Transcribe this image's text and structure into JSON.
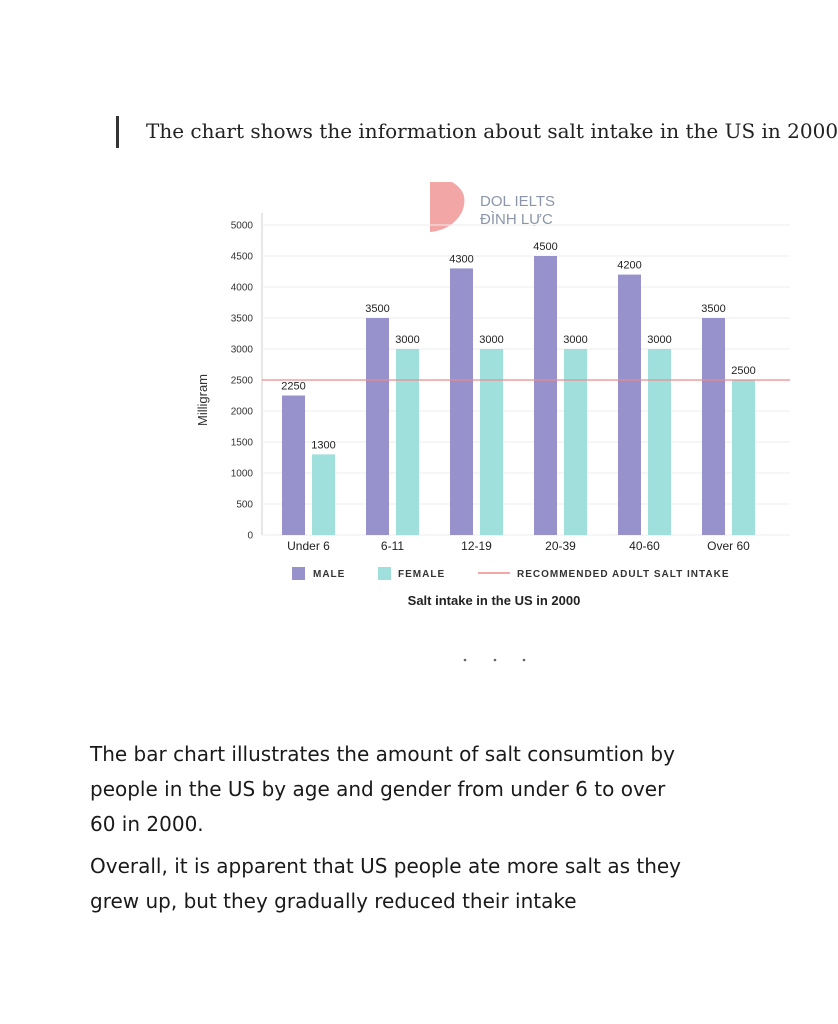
{
  "heading": "The chart shows the information about salt intake in the US in 2000",
  "logo": {
    "line1": "DOL IELTS",
    "line2": "ĐÌNH LỰC"
  },
  "paragraphs": [
    "The bar chart illustrates the amount of salt consumtion by people in the US by age and gender from under 6 to over 60 in 2000.",
    "Overall, it is apparent that US people ate more salt as they grew up, but they gradually reduced their intake"
  ],
  "chart_data": {
    "type": "bar",
    "title": "Salt intake in the US in 2000",
    "ylabel": "Milligram",
    "xlabel": "",
    "categories": [
      "Under 6",
      "6-11",
      "12-19",
      "20-39",
      "40-60",
      "Over 60"
    ],
    "series": [
      {
        "name": "MALE",
        "color": "#9791cc",
        "values": [
          2250,
          3500,
          4300,
          4500,
          4200,
          3500
        ]
      },
      {
        "name": "FEMALE",
        "color": "#9fe0dc",
        "values": [
          1300,
          3000,
          3000,
          3000,
          3000,
          2500
        ]
      }
    ],
    "value_labels": [
      [
        "2250",
        "3500",
        "4300",
        "4500",
        "4200",
        "3500"
      ],
      [
        "1300",
        "3000",
        "3000",
        "3000",
        "3000",
        "2500"
      ]
    ],
    "yticks": [
      0,
      500,
      1000,
      1500,
      2000,
      2500,
      3000,
      3500,
      4000,
      4500,
      5000
    ],
    "ylim": [
      0,
      5000
    ],
    "reference_line": {
      "name": "RECOMMENDED ADULT SALT INTAKE",
      "value": 2500,
      "color": "#f08a8a"
    },
    "grid": true,
    "legend_position": "bottom"
  }
}
